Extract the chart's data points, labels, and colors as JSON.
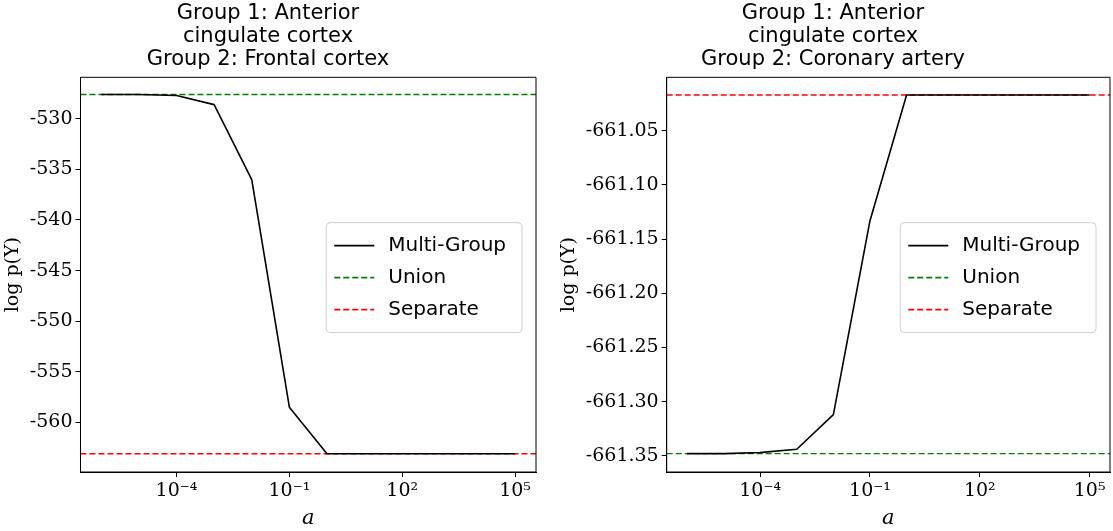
{
  "chart_data": [
    {
      "type": "line",
      "title": "Group 1: Anterior\ncingulate cortex\nGroup 2: Frontal cortex",
      "xlabel": "a",
      "ylabel": "log p(Y)",
      "log": "x",
      "legend": "right",
      "grid": false,
      "marker": "none",
      "x": [
        1e-06,
        1e-05,
        0.0001,
        0.001,
        0.01,
        0.1,
        1,
        10,
        100,
        1000,
        10000,
        100000
      ],
      "series": [
        {
          "name": "Multi-Group",
          "color": "#000000",
          "line_style": "solid",
          "values": [
            -527.6,
            -527.6,
            -527.7,
            -528.6,
            -536.0,
            -558.5,
            -563.1,
            -563.1,
            -563.1,
            -563.1,
            -563.1,
            -563.1
          ]
        }
      ],
      "ref_lines": [
        {
          "axis": "y",
          "value": -527.6,
          "label": "Union",
          "color": "#008000",
          "line_style": "dashed"
        },
        {
          "axis": "y",
          "value": -563.1,
          "label": "Separate",
          "color": "#ff0000",
          "line_style": "dashed"
        }
      ],
      "xlim": [
        2.8e-07,
        360000
      ],
      "xticks": [
        {
          "value": 0.0001,
          "label": "10⁻⁴"
        },
        {
          "value": 0.1,
          "label": "10⁻¹"
        },
        {
          "value": 100,
          "label": "10²"
        },
        {
          "value": 100000,
          "label": "10⁵"
        }
      ],
      "ylim": [
        -564.9,
        -525.9
      ],
      "yticks": [
        -560,
        -555,
        -550,
        -545,
        -540,
        -535,
        -530
      ]
    },
    {
      "type": "line",
      "title": "Group 1: Anterior\ncingulate cortex\nGroup 2: Coronary artery",
      "xlabel": "a",
      "ylabel": "log p(Y)",
      "log": "x",
      "legend": "right",
      "grid": false,
      "marker": "none",
      "x": [
        1e-06,
        1e-05,
        0.0001,
        0.001,
        0.01,
        0.1,
        1,
        10,
        100,
        1000,
        10000,
        100000
      ],
      "series": [
        {
          "name": "Multi-Group",
          "color": "#000000",
          "line_style": "solid",
          "values": [
            -661.348,
            -661.348,
            -661.347,
            -661.344,
            -661.312,
            -661.133,
            -661.017,
            -661.017,
            -661.017,
            -661.017,
            -661.017,
            -661.017
          ]
        }
      ],
      "ref_lines": [
        {
          "axis": "y",
          "value": -661.348,
          "label": "Union",
          "color": "#008000",
          "line_style": "dashed"
        },
        {
          "axis": "y",
          "value": -661.017,
          "label": "Separate",
          "color": "#ff0000",
          "line_style": "dashed"
        }
      ],
      "xlim": [
        2.8e-07,
        360000
      ],
      "xticks": [
        {
          "value": 0.0001,
          "label": "10⁻⁴"
        },
        {
          "value": 0.1,
          "label": "10⁻¹"
        },
        {
          "value": 100,
          "label": "10²"
        },
        {
          "value": 100000,
          "label": "10⁵"
        }
      ],
      "ylim": [
        -661.365,
        -661.0006
      ],
      "yticks": [
        {
          "value": -661.35,
          "label": "-661.35"
        },
        {
          "value": -661.3,
          "label": "-661.30"
        },
        {
          "value": -661.25,
          "label": "-661.25"
        },
        {
          "value": -661.2,
          "label": "-661.20"
        },
        {
          "value": -661.15,
          "label": "-661.15"
        },
        {
          "value": -661.1,
          "label": "-661.10"
        },
        {
          "value": -661.05,
          "label": "-661.05"
        }
      ]
    }
  ]
}
